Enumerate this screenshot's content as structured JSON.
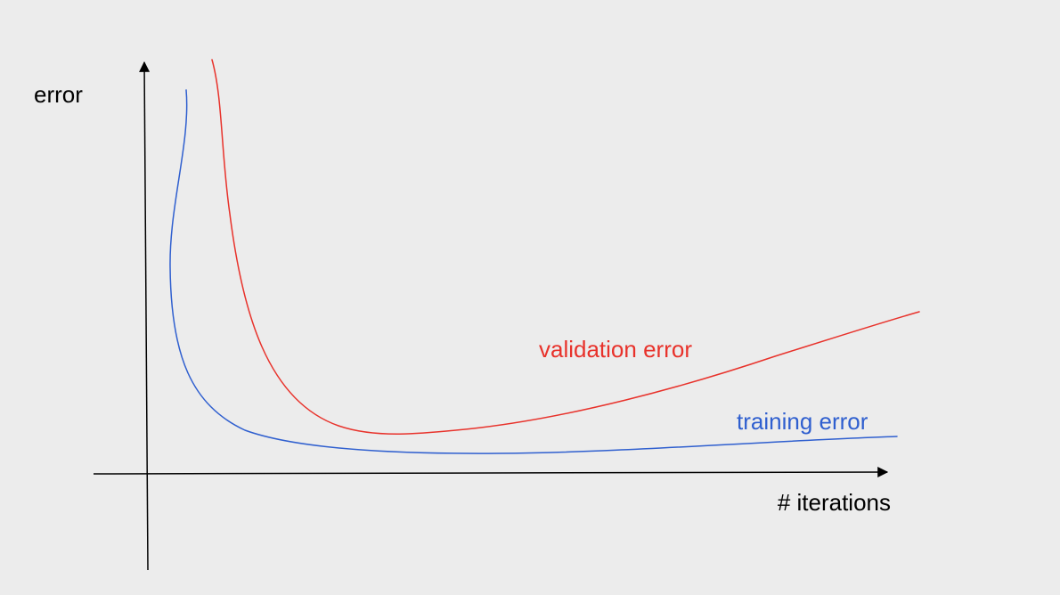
{
  "chart_data": {
    "type": "line",
    "title": "",
    "xlabel": "# iterations",
    "ylabel": "error",
    "grid": false,
    "legend": "none",
    "series": [
      {
        "name": "validation error",
        "color": "#e8322b",
        "label_color": "#e8322b"
      },
      {
        "name": "training error",
        "color": "#2f5fcf",
        "label_color": "#2f5fcf"
      }
    ],
    "axis_color": "#000000",
    "background": "#ececec"
  }
}
